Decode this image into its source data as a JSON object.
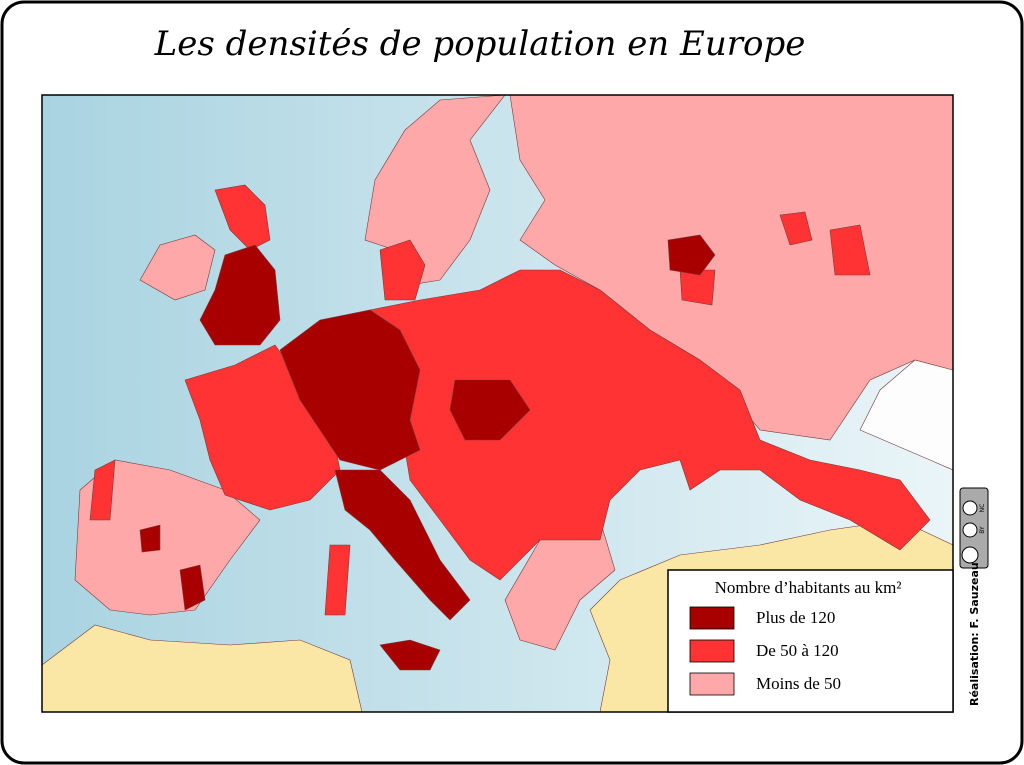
{
  "title": "Les densités de population en Europe",
  "legend": {
    "title": "Nombre d’habitants au km²",
    "items": [
      {
        "label": "Plus de 120",
        "color": "#a80000"
      },
      {
        "label": "De 50 à 120",
        "color": "#ff3333"
      },
      {
        "label": "Moins de 50",
        "color": "#ffa8aa"
      }
    ]
  },
  "credit": "Réalisation: F. Sauzeau",
  "license": [
    "BY",
    "NC"
  ]
}
